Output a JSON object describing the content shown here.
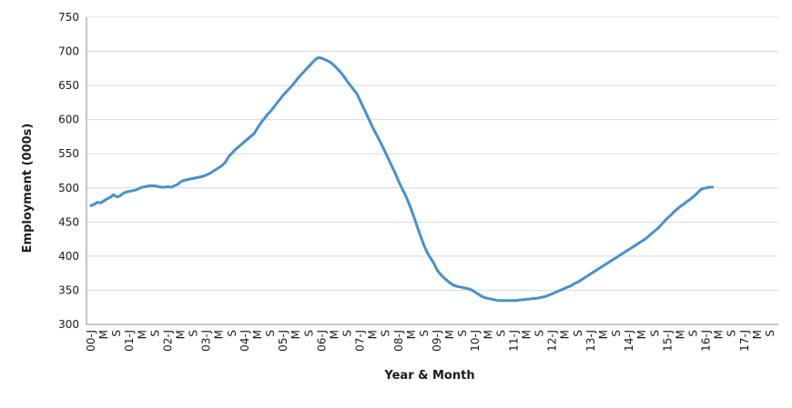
{
  "chart_data": {
    "type": "line",
    "title": "",
    "xlabel": "Year & Month",
    "ylabel": "Employment (000s)",
    "ylim": [
      300,
      750
    ],
    "yticks": [
      300,
      350,
      400,
      450,
      500,
      550,
      600,
      650,
      700,
      750
    ],
    "grid": "horizontal",
    "line_color": "#4a8fcf",
    "x_tick_labels": [
      "00-J",
      "M",
      "S",
      "01-J",
      "M",
      "S",
      "02-J",
      "M",
      "S",
      "03-J",
      "M",
      "S",
      "04-J",
      "M",
      "S",
      "05-J",
      "M",
      "S",
      "06-J",
      "M",
      "S",
      "07-J",
      "M",
      "S",
      "08-J",
      "M",
      "S",
      "09-J",
      "M",
      "S",
      "10-J",
      "M",
      "S",
      "11-J",
      "M",
      "S",
      "12-J",
      "M",
      "S",
      "13-J",
      "M",
      "S",
      "14-J",
      "M",
      "S",
      "15-J",
      "M",
      "S",
      "16-J",
      "M",
      "S",
      "17-J",
      "M",
      "S"
    ],
    "series": [
      {
        "x_start": "2000-01",
        "frequency": "monthly",
        "values": [
          474,
          476,
          479,
          478,
          481,
          484,
          486,
          490,
          487,
          488,
          492,
          494,
          495,
          496,
          497,
          499,
          501,
          502,
          503,
          503,
          503,
          502,
          501,
          501,
          502,
          501,
          503,
          505,
          509,
          511,
          512,
          513,
          514,
          515,
          516,
          517,
          519,
          521,
          524,
          527,
          530,
          533,
          538,
          546,
          551,
          556,
          560,
          564,
          568,
          572,
          576,
          580,
          588,
          595,
          601,
          607,
          612,
          618,
          624,
          630,
          636,
          641,
          646,
          651,
          657,
          663,
          668,
          673,
          678,
          683,
          688,
          691,
          690,
          688,
          686,
          683,
          679,
          674,
          669,
          663,
          656,
          650,
          644,
          638,
          628,
          618,
          608,
          598,
          588,
          579,
          570,
          561,
          551,
          541,
          531,
          521,
          510,
          500,
          491,
          480,
          468,
          455,
          441,
          428,
          415,
          405,
          397,
          390,
          380,
          374,
          369,
          365,
          361,
          358,
          356,
          355,
          354,
          353,
          352,
          350,
          347,
          344,
          341,
          339,
          338,
          337,
          336,
          335,
          335,
          335,
          335,
          335,
          335,
          335,
          336,
          336,
          337,
          337,
          338,
          338,
          339,
          340,
          341,
          343,
          345,
          347,
          349,
          351,
          353,
          355,
          357,
          360,
          362,
          365,
          368,
          371,
          374,
          377,
          380,
          383,
          386,
          389,
          392,
          395,
          398,
          401,
          404,
          407,
          410,
          413,
          416,
          419,
          422,
          425,
          429,
          433,
          437,
          441,
          446,
          451,
          456,
          460,
          465,
          469,
          473,
          476,
          480,
          483,
          487,
          491,
          496,
          499,
          500,
          501,
          501
        ]
      }
    ]
  }
}
